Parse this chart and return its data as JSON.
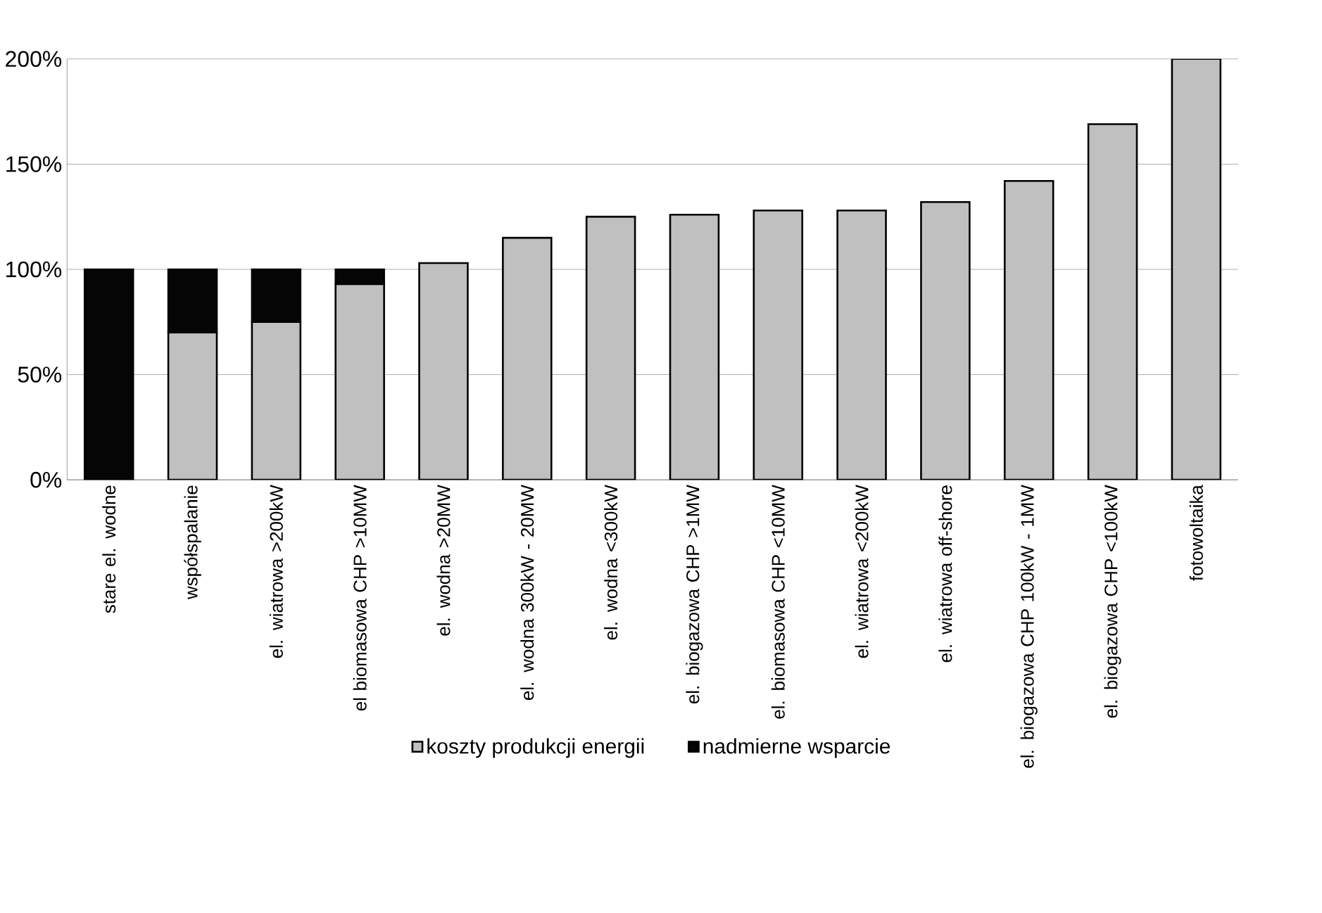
{
  "chart_data": {
    "type": "bar",
    "stacked": true,
    "categories": [
      "stare el. wodne",
      "współspalanie",
      "el. wiatrowa  >200kW",
      "el biomasowa CHP >10MW",
      "el. wodna >20MW",
      "el. wodna  300kW - 20MW",
      "el. wodna <300kW",
      "el. biogazowa CHP >1MW",
      "el. biomasowa CHP <10MW",
      "el. wiatrowa   <200kW",
      "el. wiatrowa off-shore",
      "el. biogazowa CHP 100kW - 1MW",
      "el. biogazowa CHP <100kW",
      "fotowoltaika"
    ],
    "series": [
      {
        "name": "koszty produkcji energii",
        "color": "#c0c0c0",
        "values": [
          0,
          70,
          75,
          93,
          103,
          115,
          125,
          126,
          128,
          128,
          132,
          142,
          169,
          200
        ]
      },
      {
        "name": "nadmierne wsparcie",
        "color": "#050505",
        "values": [
          100,
          30,
          25,
          7,
          0,
          0,
          0,
          0,
          0,
          0,
          0,
          0,
          0,
          0
        ]
      }
    ],
    "ylim": [
      0,
      200
    ],
    "yticks": [
      {
        "value": 0,
        "label": "0%"
      },
      {
        "value": 50,
        "label": "50%"
      },
      {
        "value": 100,
        "label": "100%"
      },
      {
        "value": 150,
        "label": "150%"
      },
      {
        "value": 200,
        "label": "200%"
      }
    ],
    "grid": "y",
    "legend": "bottom"
  }
}
